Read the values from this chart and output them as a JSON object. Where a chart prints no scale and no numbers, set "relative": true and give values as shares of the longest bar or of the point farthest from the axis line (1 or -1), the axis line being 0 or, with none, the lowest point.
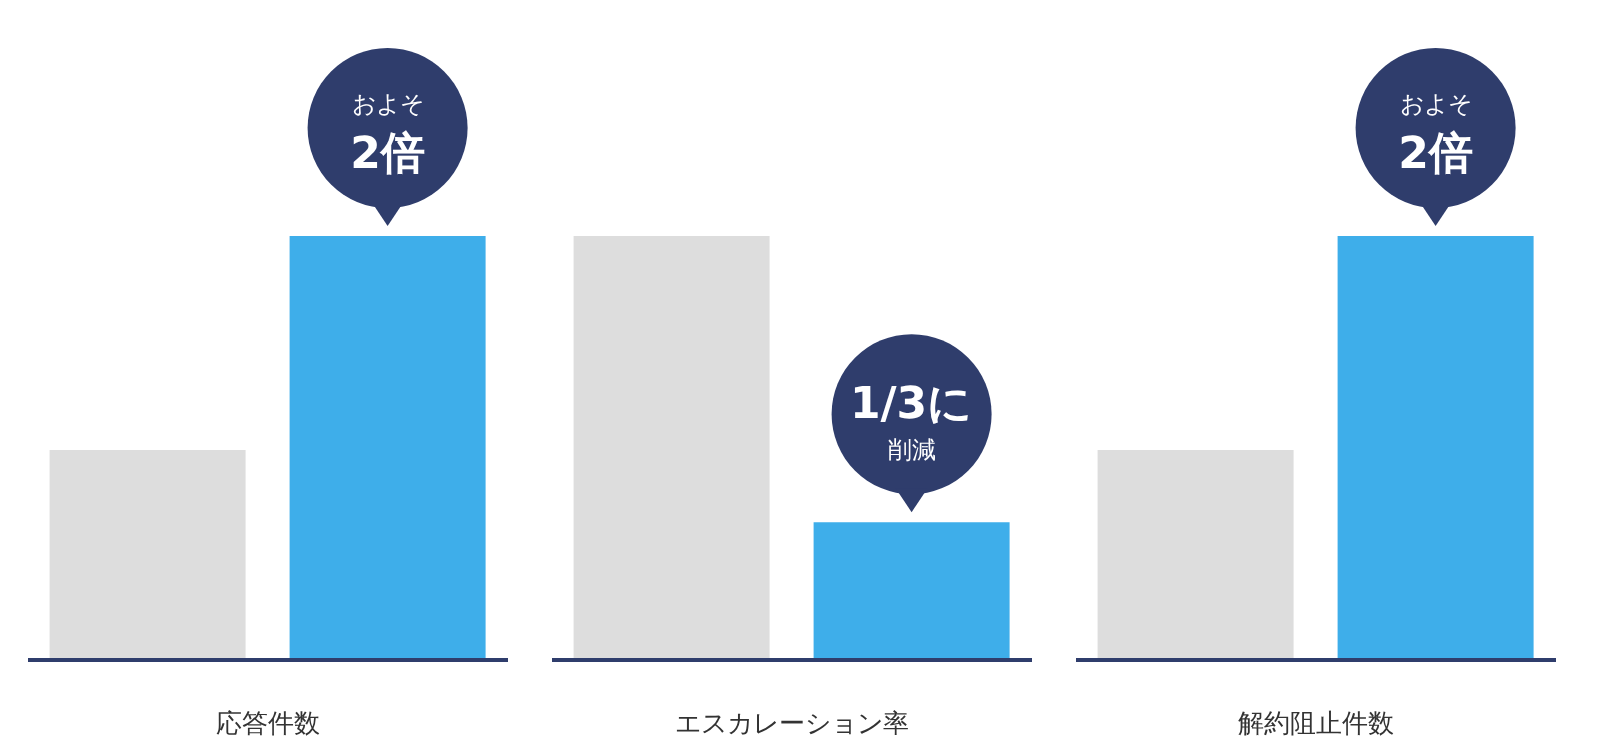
{
  "chart_data": [
    {
      "type": "bar",
      "relative": true,
      "categories": [
        null,
        null
      ],
      "values": [
        0.495,
        1
      ],
      "colors": [
        "#dddddd",
        "#3eaeea"
      ],
      "xlabel": "応答件数",
      "annotations": [
        "およそ",
        "2倍"
      ]
    },
    {
      "type": "bar",
      "relative": true,
      "categories": [
        null,
        null
      ],
      "values": [
        1,
        0.325
      ],
      "colors": [
        "#dddddd",
        "#3eaeea"
      ],
      "xlabel": "エスカレーション率",
      "annotations": [
        "1/3に",
        "削減"
      ]
    },
    {
      "type": "bar",
      "relative": true,
      "categories": [
        null,
        null
      ],
      "values": [
        0.495,
        1
      ],
      "colors": [
        "#dddddd",
        "#3eaeea"
      ],
      "xlabel": "解約阻止件数",
      "annotations": [
        "およそ",
        "2倍"
      ]
    }
  ]
}
